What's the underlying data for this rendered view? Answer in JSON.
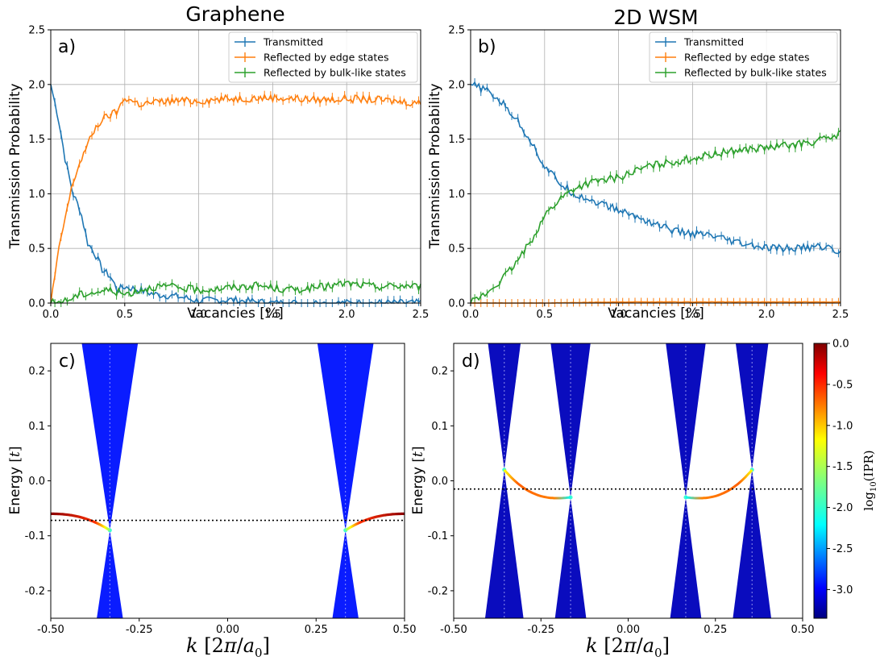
{
  "figure": {
    "background": "#ffffff"
  },
  "colors": {
    "transmitted": "#1f77b4",
    "edge": "#ff7f0e",
    "bulk": "#2ca02c",
    "band_graphene": "#0a1cff",
    "band_wsm": "#0a0cbe",
    "grid": "#b0b0b0"
  },
  "chart_data": [
    {
      "id": "a",
      "type": "line",
      "title": "Graphene",
      "panel_label": "a)",
      "xlabel": "Vacancies [%]",
      "ylabel": "Transmission Probability",
      "xlim": [
        0,
        2.5
      ],
      "ylim": [
        0,
        2.5
      ],
      "xticks": [
        "0.0",
        "0.5",
        "1.0",
        "1.5",
        "2.0",
        "2.5"
      ],
      "yticks": [
        "0.0",
        "0.5",
        "1.0",
        "1.5",
        "2.0",
        "2.5"
      ],
      "grid": true,
      "legend_position": "top-right",
      "series": [
        {
          "name": "Transmitted",
          "color": "#1f77b4",
          "x": [
            0,
            0.05,
            0.1,
            0.15,
            0.2,
            0.25,
            0.3,
            0.35,
            0.4,
            0.45,
            0.5,
            0.6,
            0.7,
            0.8,
            0.9,
            1.0,
            1.2,
            1.5,
            2.0,
            2.5
          ],
          "y": [
            2.0,
            1.7,
            1.3,
            1.0,
            0.85,
            0.55,
            0.45,
            0.3,
            0.25,
            0.12,
            0.15,
            0.12,
            0.08,
            0.07,
            0.05,
            0.02,
            0.03,
            0.0,
            0.0,
            0.0
          ]
        },
        {
          "name": "Reflected by edge states",
          "color": "#ff7f0e",
          "x": [
            0,
            0.05,
            0.1,
            0.15,
            0.2,
            0.25,
            0.3,
            0.35,
            0.4,
            0.45,
            0.5,
            0.6,
            0.8,
            1.0,
            1.2,
            1.5,
            1.8,
            2.0,
            2.2,
            2.5
          ],
          "y": [
            0.0,
            0.45,
            0.8,
            1.1,
            1.3,
            1.45,
            1.6,
            1.68,
            1.72,
            1.75,
            1.88,
            1.82,
            1.85,
            1.85,
            1.87,
            1.88,
            1.86,
            1.87,
            1.86,
            1.83
          ]
        },
        {
          "name": "Reflected by bulk-like states",
          "color": "#2ca02c",
          "x": [
            0,
            0.1,
            0.2,
            0.3,
            0.4,
            0.5,
            0.6,
            0.7,
            0.8,
            1.0,
            1.2,
            1.4,
            1.6,
            1.8,
            2.0,
            2.2,
            2.4,
            2.5
          ],
          "y": [
            0.0,
            0.02,
            0.08,
            0.1,
            0.12,
            0.08,
            0.12,
            0.15,
            0.15,
            0.12,
            0.14,
            0.16,
            0.12,
            0.14,
            0.18,
            0.15,
            0.16,
            0.15
          ]
        }
      ]
    },
    {
      "id": "b",
      "type": "line",
      "title": "2D WSM",
      "panel_label": "b)",
      "xlabel": "Vacancies [%]",
      "ylabel": "Transmission Probability",
      "xlim": [
        0,
        2.5
      ],
      "ylim": [
        0,
        2.5
      ],
      "xticks": [
        "0.0",
        "0.5",
        "1.0",
        "1.5",
        "2.0",
        "2.5"
      ],
      "yticks": [
        "0.0",
        "0.5",
        "1.0",
        "1.5",
        "2.0",
        "2.5"
      ],
      "grid": true,
      "legend_position": "top-right",
      "series": [
        {
          "name": "Transmitted",
          "color": "#1f77b4",
          "x": [
            0,
            0.1,
            0.2,
            0.3,
            0.4,
            0.5,
            0.6,
            0.7,
            0.8,
            1.0,
            1.2,
            1.4,
            1.6,
            1.8,
            2.0,
            2.2,
            2.4,
            2.5
          ],
          "y": [
            2.0,
            1.95,
            1.85,
            1.7,
            1.5,
            1.25,
            1.1,
            1.0,
            0.95,
            0.85,
            0.75,
            0.65,
            0.62,
            0.55,
            0.5,
            0.5,
            0.52,
            0.45
          ]
        },
        {
          "name": "Reflected by edge states",
          "color": "#ff7f0e",
          "x": [
            0,
            0.5,
            1.0,
            1.5,
            2.0,
            2.5
          ],
          "y": [
            0.0,
            0.0,
            0.01,
            0.01,
            0.01,
            0.01
          ]
        },
        {
          "name": "Reflected by bulk-like states",
          "color": "#2ca02c",
          "x": [
            0,
            0.1,
            0.2,
            0.3,
            0.4,
            0.5,
            0.6,
            0.7,
            0.8,
            1.0,
            1.2,
            1.4,
            1.6,
            1.8,
            2.0,
            2.2,
            2.4,
            2.5
          ],
          "y": [
            0.0,
            0.08,
            0.2,
            0.35,
            0.55,
            0.8,
            0.95,
            1.05,
            1.1,
            1.15,
            1.25,
            1.3,
            1.35,
            1.4,
            1.42,
            1.45,
            1.5,
            1.55
          ]
        }
      ]
    },
    {
      "id": "c",
      "type": "heatmap",
      "panel_label": "c)",
      "xlabel": "k [2π/a₀]",
      "ylabel": "Energy [t]",
      "xlim": [
        -0.5,
        0.5
      ],
      "ylim": [
        -0.25,
        0.25
      ],
      "xticks": [
        "-0.50",
        "-0.25",
        "0.00",
        "0.25",
        "0.50"
      ],
      "yticks": [
        "-0.2",
        "-0.1",
        "0.0",
        "0.1",
        "0.2"
      ],
      "dirac_points": [
        {
          "k": -0.333,
          "E": -0.09
        },
        {
          "k": 0.333,
          "E": -0.09
        }
      ],
      "fermi_level": -0.072,
      "edge_state": {
        "k_from": 0.333,
        "k_to": 0.5,
        "E_start": -0.09,
        "E_end": -0.06
      }
    },
    {
      "id": "d",
      "type": "heatmap",
      "panel_label": "d)",
      "xlabel": "k [2π/a₀]",
      "ylabel": "Energy [t]",
      "xlim": [
        -0.5,
        0.5
      ],
      "ylim": [
        -0.25,
        0.25
      ],
      "xticks": [
        "-0.50",
        "-0.25",
        "0.00",
        "0.25",
        "0.50"
      ],
      "yticks": [
        "-0.2",
        "-0.1",
        "0.0",
        "0.1",
        "0.2"
      ],
      "dirac_points": [
        {
          "k": -0.355,
          "E": 0.02
        },
        {
          "k": -0.165,
          "E": -0.03
        },
        {
          "k": 0.165,
          "E": -0.03
        },
        {
          "k": 0.355,
          "E": 0.02
        }
      ],
      "fermi_level": -0.015,
      "colorbar": {
        "label": "log₁₀(IPR)",
        "range": [
          -3.35,
          0.0
        ],
        "ticks": [
          "0.0",
          "-0.5",
          "-1.0",
          "-1.5",
          "-2.0",
          "-2.5",
          "-3.0"
        ]
      }
    }
  ]
}
